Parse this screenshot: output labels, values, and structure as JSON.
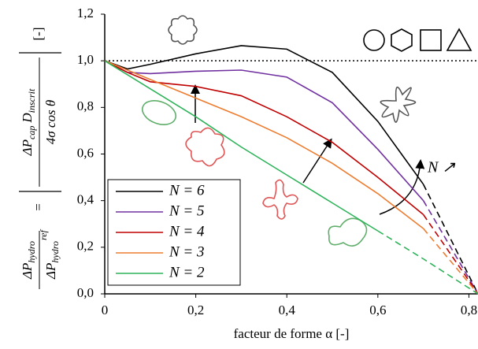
{
  "chart_data": {
    "type": "line",
    "xlabel": "facteur de forme α [-]",
    "ylabel": {
      "lhs_num": "ΔP",
      "lhs_num_sub": "hydro",
      "lhs_den": "ΔP",
      "lhs_den_sub": "hydro",
      "lhs_den_sup": "ref",
      "eq": "=",
      "rhs_num": "ΔP",
      "rhs_num_sub": "cap",
      "rhs_num_b": "D",
      "rhs_num_b_sub": "inscrit",
      "rhs_den": "4σ cos θ",
      "unit": "[-]"
    },
    "x": [
      0,
      0.05,
      0.1,
      0.2,
      0.3,
      0.4,
      0.5,
      0.6,
      0.7,
      0.82
    ],
    "series": [
      {
        "name": "N = 6",
        "color": "#000000",
        "dashed_after": 0.7,
        "values": [
          1,
          0.965,
          0.985,
          1.03,
          1.065,
          1.05,
          0.95,
          0.74,
          0.47,
          0
        ]
      },
      {
        "name": "N = 5",
        "color": "#7030a0",
        "dashed_after": 0.7,
        "values": [
          1,
          0.95,
          0.945,
          0.955,
          0.96,
          0.93,
          0.82,
          0.62,
          0.4,
          0
        ]
      },
      {
        "name": "N = 4",
        "color": "#c00000",
        "dashed_after": 0.7,
        "values": [
          1,
          0.95,
          0.91,
          0.89,
          0.85,
          0.76,
          0.65,
          0.5,
          0.34,
          0
        ]
      },
      {
        "name": "N = 3",
        "color": "#ed7d31",
        "dashed_after": 0.7,
        "values": [
          1,
          0.96,
          0.92,
          0.84,
          0.76,
          0.67,
          0.56,
          0.43,
          0.28,
          0
        ]
      },
      {
        "name": "N = 2",
        "color": "#2eb35a",
        "dashed_after": 0.6,
        "values": [
          1,
          0.94,
          0.88,
          0.76,
          0.63,
          0.51,
          0.39,
          0.27,
          0.15,
          0
        ]
      }
    ],
    "reference_line": 1,
    "annotation": "N ↗",
    "legend": "lower left",
    "xlim": [
      0,
      0.82
    ],
    "ylim": [
      0,
      1.2
    ],
    "xticks": [
      0,
      {
        "value": 0.2,
        "label": "0,2"
      },
      {
        "value": 0.4,
        "label": "0,4"
      },
      {
        "value": 0.6,
        "label": "0,6"
      },
      {
        "value": 0.8,
        "label": "0,8"
      }
    ],
    "yticks": [
      {
        "value": 0,
        "label": "0,0"
      },
      {
        "value": 0.2,
        "label": "0,2"
      },
      {
        "value": 0.4,
        "label": "0,4"
      },
      {
        "value": 0.6,
        "label": "0,6"
      },
      {
        "value": 0.8,
        "label": "0,8"
      },
      {
        "value": 1,
        "label": "1,0"
      },
      {
        "value": 1.2,
        "label": "1,2"
      }
    ]
  }
}
